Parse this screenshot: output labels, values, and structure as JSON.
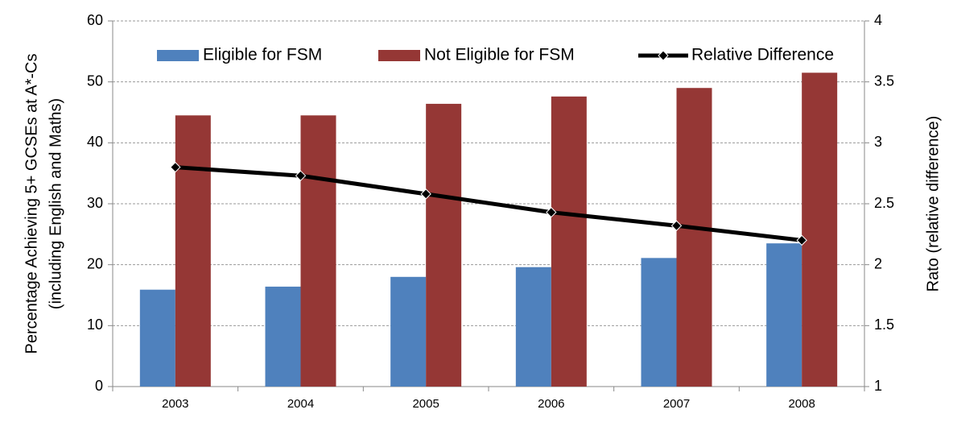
{
  "chart_data": {
    "type": "bar",
    "ylabel": [
      "Percentage Achieving 5+ GCSEs at A*-Cs",
      "(including English and Maths)"
    ],
    "y2label": "Rato (relative difference)",
    "categories": [
      "2003",
      "2004",
      "2005",
      "2006",
      "2007",
      "2008"
    ],
    "series": [
      {
        "name": "Eligible for FSM",
        "color": "#4f81bd",
        "values": [
          15.9,
          16.4,
          18.0,
          19.6,
          21.1,
          23.5
        ]
      },
      {
        "name": "Not Eligible for FSM",
        "color": "#953735",
        "values": [
          44.5,
          44.5,
          46.4,
          47.6,
          49.0,
          51.5
        ]
      },
      {
        "name": "Relative Difference",
        "color": "#000000",
        "type": "line",
        "axis": "y2",
        "values": [
          2.8,
          2.73,
          2.58,
          2.43,
          2.32,
          2.2
        ]
      }
    ],
    "ylim": [
      0,
      60
    ],
    "yticks": [
      0,
      10,
      20,
      30,
      40,
      50,
      60
    ],
    "y2lim": [
      1,
      4
    ],
    "y2ticks": [
      1,
      1.5,
      2,
      2.5,
      3,
      3.5,
      4
    ],
    "grid": true,
    "legend": "top"
  }
}
